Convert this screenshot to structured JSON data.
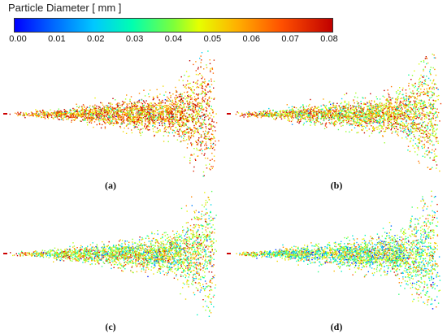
{
  "colorbar": {
    "title": "Particle Diameter [ mm ]",
    "tick_labels": [
      "0.00",
      "0.01",
      "0.02",
      "0.03",
      "0.04",
      "0.05",
      "0.06",
      "0.07",
      "0.08"
    ],
    "colors": [
      "#0000ff",
      "#0066ff",
      "#00c8ff",
      "#00ffb0",
      "#7dff3a",
      "#e6ff00",
      "#ffb000",
      "#ff5000",
      "#c00000"
    ]
  },
  "panels": [
    {
      "label": "(a)",
      "mean_fraction": 0.78
    },
    {
      "label": "(b)",
      "mean_fraction": 0.68
    },
    {
      "label": "(c)",
      "mean_fraction": 0.58
    },
    {
      "label": "(d)",
      "mean_fraction": 0.5
    }
  ]
}
